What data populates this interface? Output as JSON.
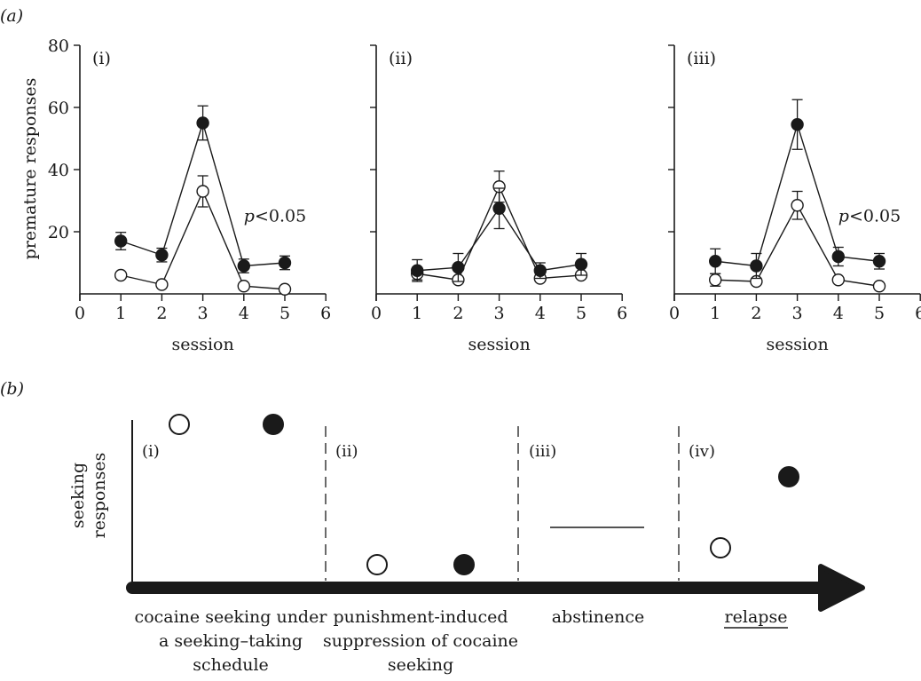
{
  "figure": {
    "panel_a_label": "(a)",
    "panel_b_label": "(b)"
  },
  "chart_data": [
    {
      "type": "line",
      "panel": "(i)",
      "xlabel": "session",
      "ylabel": "premature responses",
      "xlim": [
        0,
        6
      ],
      "ylim": [
        0,
        80
      ],
      "xticks": [
        0,
        1,
        2,
        3,
        4,
        5,
        6
      ],
      "yticks": [
        0,
        20,
        40,
        60,
        80
      ],
      "annotation_prefix": "p",
      "annotation_suffix": "<0.05",
      "series": [
        {
          "marker": "filled",
          "x": [
            1,
            2,
            3,
            4,
            5
          ],
          "y": [
            17,
            12.5,
            55,
            9,
            10
          ],
          "err": [
            2.8,
            2.2,
            5.5,
            2.2,
            2.2
          ]
        },
        {
          "marker": "open",
          "x": [
            1,
            2,
            3,
            4,
            5
          ],
          "y": [
            6,
            3,
            33,
            2.5,
            1.5
          ],
          "err": [
            0,
            0,
            5,
            0,
            0
          ]
        }
      ]
    },
    {
      "type": "line",
      "panel": "(ii)",
      "xlabel": "session",
      "xlim": [
        0,
        6
      ],
      "ylim": [
        0,
        80
      ],
      "xticks": [
        0,
        1,
        2,
        3,
        4,
        5,
        6
      ],
      "series": [
        {
          "marker": "filled",
          "x": [
            1,
            2,
            3,
            4,
            5
          ],
          "y": [
            7.5,
            8.5,
            27.5,
            7.5,
            9.5
          ],
          "err": [
            3.5,
            4.5,
            6.5,
            2.5,
            3.5
          ]
        },
        {
          "marker": "open",
          "x": [
            1,
            2,
            3,
            4,
            5
          ],
          "y": [
            6.5,
            4.5,
            34.5,
            5,
            6
          ],
          "err": [
            2,
            0,
            5,
            0,
            0
          ]
        }
      ]
    },
    {
      "type": "line",
      "panel": "(iii)",
      "xlabel": "session",
      "xlim": [
        0,
        6
      ],
      "ylim": [
        0,
        80
      ],
      "xticks": [
        0,
        1,
        2,
        3,
        4,
        5,
        6
      ],
      "annotation_prefix": "p",
      "annotation_suffix": "<0.05",
      "series": [
        {
          "marker": "filled",
          "x": [
            1,
            2,
            3,
            4,
            5
          ],
          "y": [
            10.5,
            9,
            54.5,
            12,
            10.5
          ],
          "err": [
            4,
            4,
            8,
            3,
            2.5
          ]
        },
        {
          "marker": "open",
          "x": [
            1,
            2,
            3,
            4,
            5
          ],
          "y": [
            4.5,
            4,
            28.5,
            4.5,
            2.5
          ],
          "err": [
            2,
            0,
            4.5,
            0,
            0
          ]
        }
      ]
    }
  ],
  "schematic": {
    "ylabel_line1": "seeking",
    "ylabel_line2": "responses",
    "phases": [
      {
        "label": "(i)",
        "caption": [
          "cocaine seeking under",
          "a seeking–taking",
          "schedule"
        ],
        "open_level": 0.83,
        "filled_level": 0.83
      },
      {
        "label": "(ii)",
        "caption": [
          "punishment-induced",
          "suppression of cocaine",
          "seeking"
        ],
        "open_level": 0.12,
        "filled_level": 0.12
      },
      {
        "label": "(iii)",
        "caption": [
          "abstinence"
        ]
      },
      {
        "label": "(iv)",
        "caption": [
          "relapse"
        ],
        "open_level": 0.2,
        "filled_level": 0.55
      }
    ]
  }
}
